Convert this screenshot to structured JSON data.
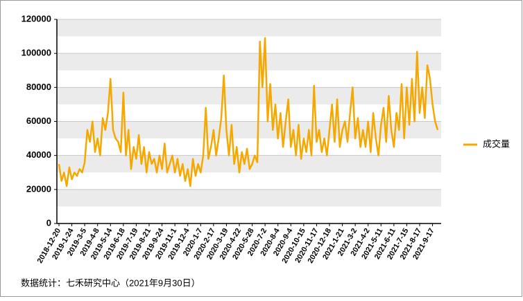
{
  "chart_data": {
    "type": "line",
    "footer": "数据统计：七禾研究中心（2021年9月30日）",
    "categories": [
      "2018-12-20",
      null,
      null,
      null,
      null,
      "2019-1-24",
      null,
      null,
      null,
      null,
      "2019-3-5",
      null,
      null,
      null,
      null,
      "2019-4-8",
      null,
      null,
      null,
      null,
      "2019-5-14",
      null,
      null,
      null,
      null,
      "2019-6-18",
      null,
      null,
      null,
      null,
      "2019-7-19",
      null,
      null,
      null,
      null,
      "2019-8-21",
      null,
      null,
      null,
      null,
      "2019-9-24",
      null,
      null,
      null,
      null,
      "2019-11-1",
      null,
      null,
      null,
      null,
      "2019-12-4",
      null,
      null,
      null,
      null,
      "2020-1-7",
      null,
      null,
      null,
      null,
      "2020-2-17",
      null,
      null,
      null,
      null,
      "2020-3-19",
      null,
      null,
      null,
      null,
      "2020-4-22",
      null,
      null,
      null,
      null,
      "2020-5-28",
      null,
      null,
      null,
      null,
      "2020-7-2",
      null,
      null,
      null,
      null,
      "2020-8-4",
      null,
      null,
      null,
      null,
      "2020-9-4",
      null,
      null,
      null,
      null,
      "2020-10-15",
      null,
      null,
      null,
      null,
      "2020-11-17",
      null,
      null,
      null,
      null,
      "2020-12-18",
      null,
      null,
      null,
      null,
      "2021-1-21",
      null,
      null,
      null,
      null,
      "2021-3-2",
      null,
      null,
      null,
      null,
      "2021-4-2",
      null,
      null,
      null,
      null,
      "2021-5-11",
      null,
      null,
      null,
      null,
      "2021-6-11",
      null,
      null,
      null,
      null,
      "2021-7-15",
      null,
      null,
      null,
      null,
      "2021-8-17",
      null,
      null,
      null,
      null,
      "2021-9-17",
      null,
      null
    ],
    "series": [
      {
        "name": "成交量",
        "color": "#f5a800",
        "values": [
          35000,
          25000,
          30000,
          22000,
          33000,
          26000,
          30000,
          28000,
          32000,
          30000,
          36000,
          55000,
          48000,
          60000,
          42000,
          50000,
          40000,
          62000,
          55000,
          65000,
          85000,
          55000,
          50000,
          48000,
          42000,
          77000,
          40000,
          55000,
          32000,
          45000,
          38000,
          52000,
          35000,
          45000,
          30000,
          42000,
          35000,
          38000,
          30000,
          40000,
          32000,
          47000,
          30000,
          35000,
          40000,
          30000,
          38000,
          28000,
          35000,
          25000,
          32000,
          22000,
          38000,
          28000,
          35000,
          30000,
          40000,
          68000,
          38000,
          45000,
          55000,
          40000,
          50000,
          62000,
          87000,
          55000,
          40000,
          58000,
          35000,
          45000,
          30000,
          42000,
          35000,
          44000,
          32000,
          35000,
          40000,
          36000,
          107000,
          80000,
          109000,
          60000,
          82000,
          55000,
          70000,
          50000,
          65000,
          45000,
          60000,
          73000,
          45000,
          55000,
          40000,
          58000,
          38000,
          50000,
          42000,
          55000,
          40000,
          81000,
          48000,
          55000,
          42000,
          50000,
          40000,
          55000,
          70000,
          48000,
          73000,
          45000,
          55000,
          60000,
          48000,
          65000,
          80000,
          50000,
          62000,
          45000,
          55000,
          45000,
          60000,
          42000,
          65000,
          50000,
          40000,
          58000,
          68000,
          48000,
          75000,
          55000,
          45000,
          65000,
          55000,
          82000,
          50000,
          80000,
          58000,
          85000,
          60000,
          101000,
          65000,
          80000,
          62000,
          93000,
          85000,
          70000,
          60000,
          55000
        ]
      }
    ],
    "ylim": [
      0,
      120000
    ],
    "yticks": [
      0,
      20000,
      40000,
      60000,
      80000,
      100000,
      120000
    ],
    "grid": true,
    "legend": "right"
  }
}
